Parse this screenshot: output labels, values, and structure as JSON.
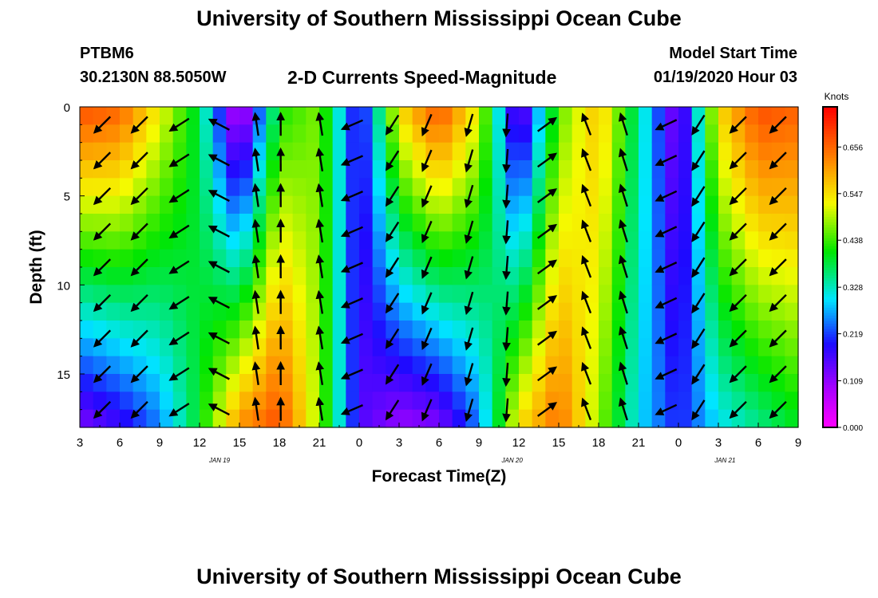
{
  "header": {
    "title": "University of Southern Mississippi Ocean Cube",
    "station_id": "PTBM6",
    "station_coords": "30.2130N 88.5050W",
    "subtitle": "2-D Currents Speed-Magnitude",
    "model_label": "Model Start Time",
    "model_time": "01/19/2020 Hour 03"
  },
  "footer": {
    "title": "University of Southern Mississippi Ocean Cube"
  },
  "chart_data": {
    "type": "heatmap",
    "title": "2-D Currents Speed-Magnitude",
    "xlabel": "Forecast Time(Z)",
    "ylabel": "Depth (ft)",
    "x_tick_labels": [
      "3",
      "6",
      "9",
      "12",
      "15",
      "18",
      "21",
      "0",
      "3",
      "6",
      "9",
      "12",
      "15",
      "18",
      "21",
      "0",
      "3",
      "6",
      "9"
    ],
    "date_labels": [
      {
        "text": "JAN 19",
        "at_hour": 13.5
      },
      {
        "text": "JAN 20",
        "at_hour": 35.5
      },
      {
        "text": "JAN 21",
        "at_hour": 51.5
      }
    ],
    "x_range_hours": [
      3,
      57
    ],
    "y_ticks": [
      0,
      5,
      10,
      15
    ],
    "y_range_ft": [
      0,
      18
    ],
    "colorbar": {
      "label": "Knots",
      "tick_labels": [
        "0.000",
        "0.109",
        "0.219",
        "0.328",
        "0.438",
        "0.547",
        "0.656"
      ],
      "range": [
        0,
        0.75
      ]
    },
    "speed_keyframes": [
      {
        "hour": 3,
        "surface": 0.68,
        "bottom": 0.12
      },
      {
        "hour": 6,
        "surface": 0.66,
        "bottom": 0.17
      },
      {
        "hour": 9,
        "surface": 0.53,
        "bottom": 0.25
      },
      {
        "hour": 12,
        "surface": 0.38,
        "bottom": 0.4
      },
      {
        "hour": 15,
        "surface": 0.04,
        "bottom": 0.62
      },
      {
        "hour": 18,
        "surface": 0.42,
        "bottom": 0.68
      },
      {
        "hour": 21,
        "surface": 0.47,
        "bottom": 0.48
      },
      {
        "hour": 24,
        "surface": 0.16,
        "bottom": 0.16
      },
      {
        "hour": 27,
        "surface": 0.55,
        "bottom": 0.1
      },
      {
        "hour": 30,
        "surface": 0.68,
        "bottom": 0.12
      },
      {
        "hour": 33,
        "surface": 0.52,
        "bottom": 0.25
      },
      {
        "hour": 36,
        "surface": 0.1,
        "bottom": 0.55
      },
      {
        "hour": 39,
        "surface": 0.45,
        "bottom": 0.65
      },
      {
        "hour": 42,
        "surface": 0.58,
        "bottom": 0.48
      },
      {
        "hour": 45,
        "surface": 0.35,
        "bottom": 0.3
      },
      {
        "hour": 48,
        "surface": 0.1,
        "bottom": 0.2
      },
      {
        "hour": 51,
        "surface": 0.55,
        "bottom": 0.3
      },
      {
        "hour": 54,
        "surface": 0.68,
        "bottom": 0.35
      },
      {
        "hour": 57,
        "surface": 0.66,
        "bottom": 0.4
      }
    ],
    "direction_keyframes_deg": [
      {
        "hour": 3,
        "dir": 225
      },
      {
        "hour": 9,
        "dir": 225
      },
      {
        "hour": 12,
        "dir": 250
      },
      {
        "hour": 15,
        "dir": 345
      },
      {
        "hour": 18,
        "dir": 0
      },
      {
        "hour": 21,
        "dir": 355
      },
      {
        "hour": 24,
        "dir": 225
      },
      {
        "hour": 27,
        "dir": 210
      },
      {
        "hour": 30,
        "dir": 200
      },
      {
        "hour": 33,
        "dir": 195
      },
      {
        "hour": 36,
        "dir": 180
      },
      {
        "hour": 39,
        "dir": 0
      },
      {
        "hour": 42,
        "dir": 330
      },
      {
        "hour": 45,
        "dir": 350
      },
      {
        "hour": 48,
        "dir": 200
      },
      {
        "hour": 51,
        "dir": 225
      },
      {
        "hour": 57,
        "dir": 225
      }
    ],
    "vector_times_hours": [
      4.7,
      7.5,
      10.5,
      13.5,
      16.3,
      18.1,
      21.1,
      23.5,
      26.5,
      29.1,
      32.3,
      35.1,
      38.1,
      41.1,
      43.9,
      47.1,
      49.5,
      52.5,
      55.5
    ],
    "vector_depths_ft": [
      1,
      3,
      5,
      7,
      9,
      11,
      13,
      15,
      17
    ]
  }
}
